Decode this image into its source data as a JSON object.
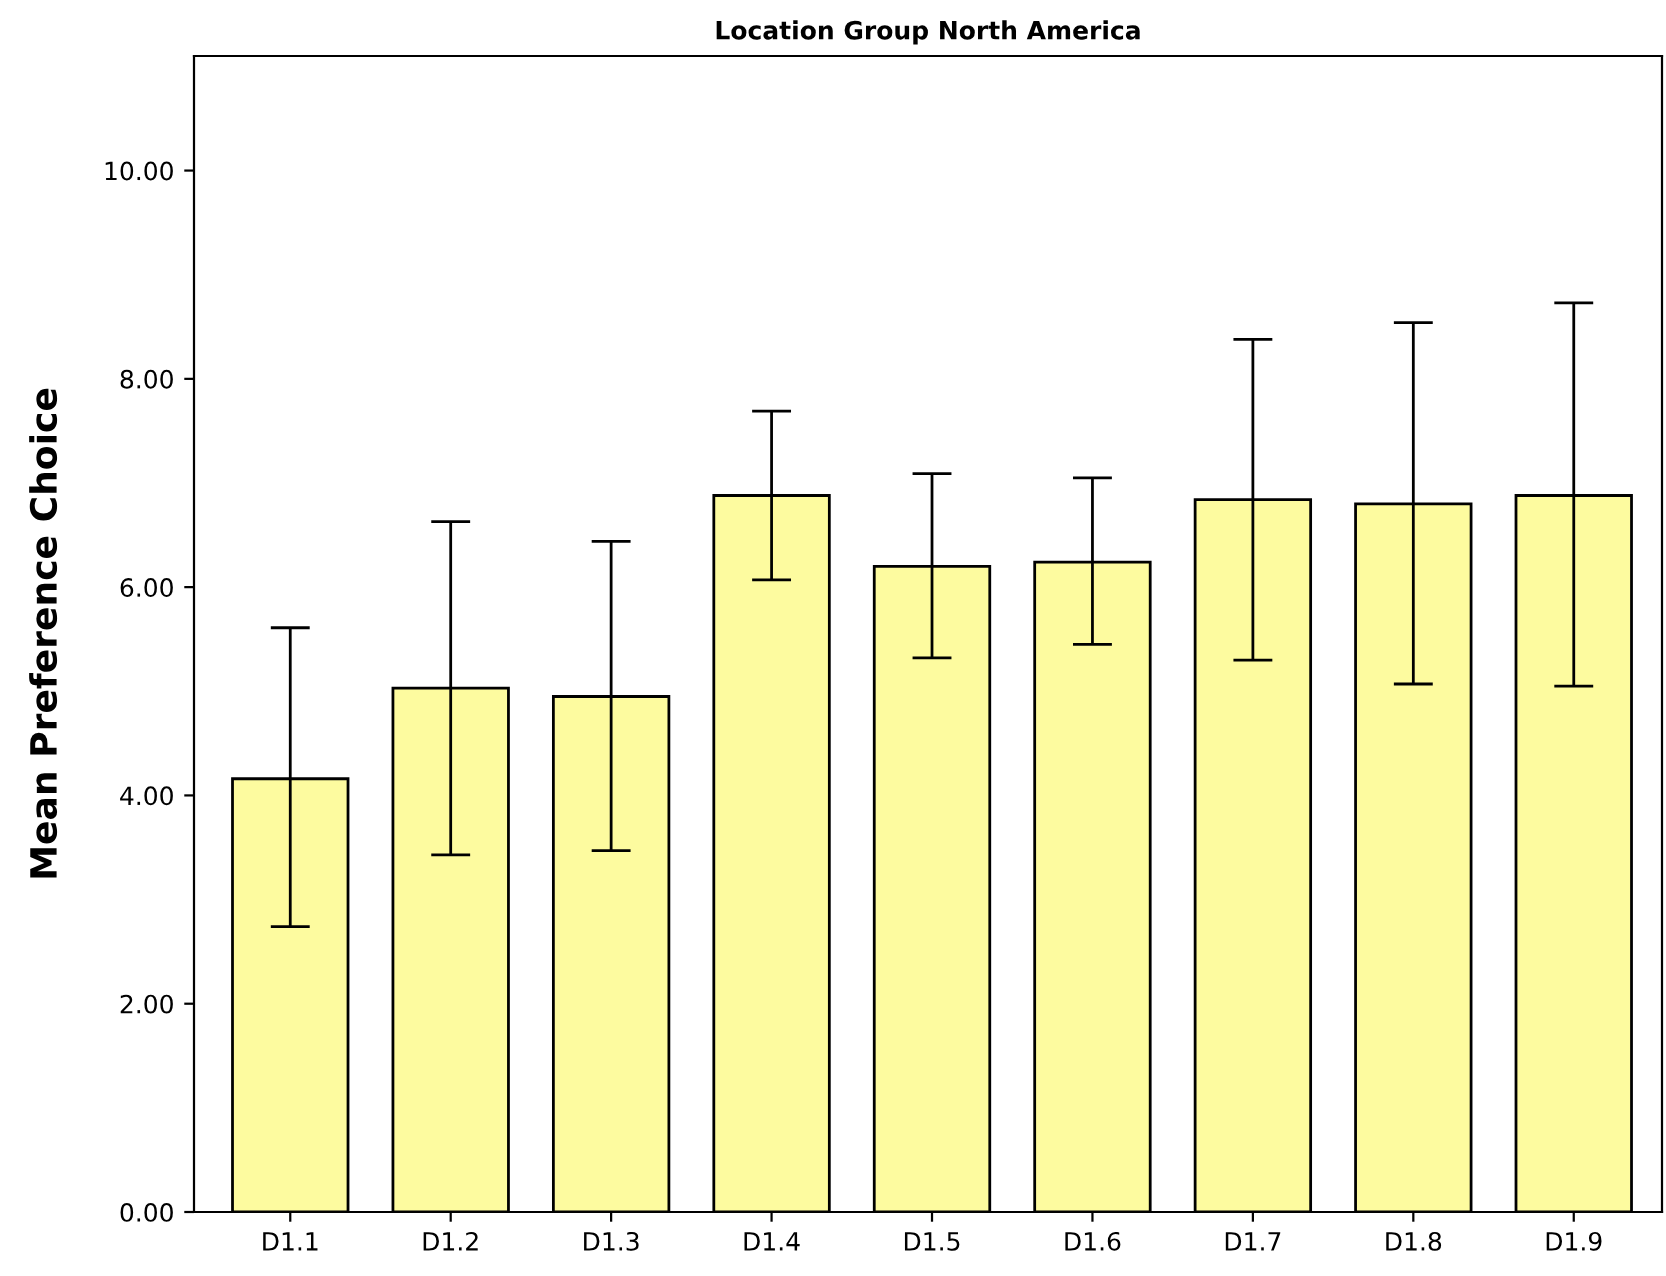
{
  "chart_data": {
    "type": "bar",
    "title": "Location Group North America",
    "ylabel": "Mean Preference Choice",
    "categories": [
      "D1.1",
      "D1.2",
      "D1.3",
      "D1.4",
      "D1.5",
      "D1.6",
      "D1.7",
      "D1.8",
      "D1.9"
    ],
    "values": [
      4.16,
      5.03,
      4.95,
      6.88,
      6.2,
      6.24,
      6.84,
      6.8,
      6.88
    ],
    "errors": [
      [
        2.74,
        5.61
      ],
      [
        3.43,
        6.63
      ],
      [
        3.47,
        6.44
      ],
      [
        6.07,
        7.69
      ],
      [
        5.32,
        7.09
      ],
      [
        5.45,
        7.05
      ],
      [
        5.3,
        8.38
      ],
      [
        5.07,
        8.54
      ],
      [
        5.05,
        8.73
      ]
    ],
    "color": "#fdfb9f",
    "ylim": [
      0,
      11.1
    ],
    "yticks": [
      {
        "value": 0,
        "label": "0.00"
      },
      {
        "value": 2,
        "label": "2.00"
      },
      {
        "value": 4,
        "label": "4.00"
      },
      {
        "value": 6,
        "label": "6.00"
      },
      {
        "value": 8,
        "label": "8.00"
      },
      {
        "value": 10,
        "label": "10.00"
      }
    ],
    "grid": false,
    "legend": false
  }
}
